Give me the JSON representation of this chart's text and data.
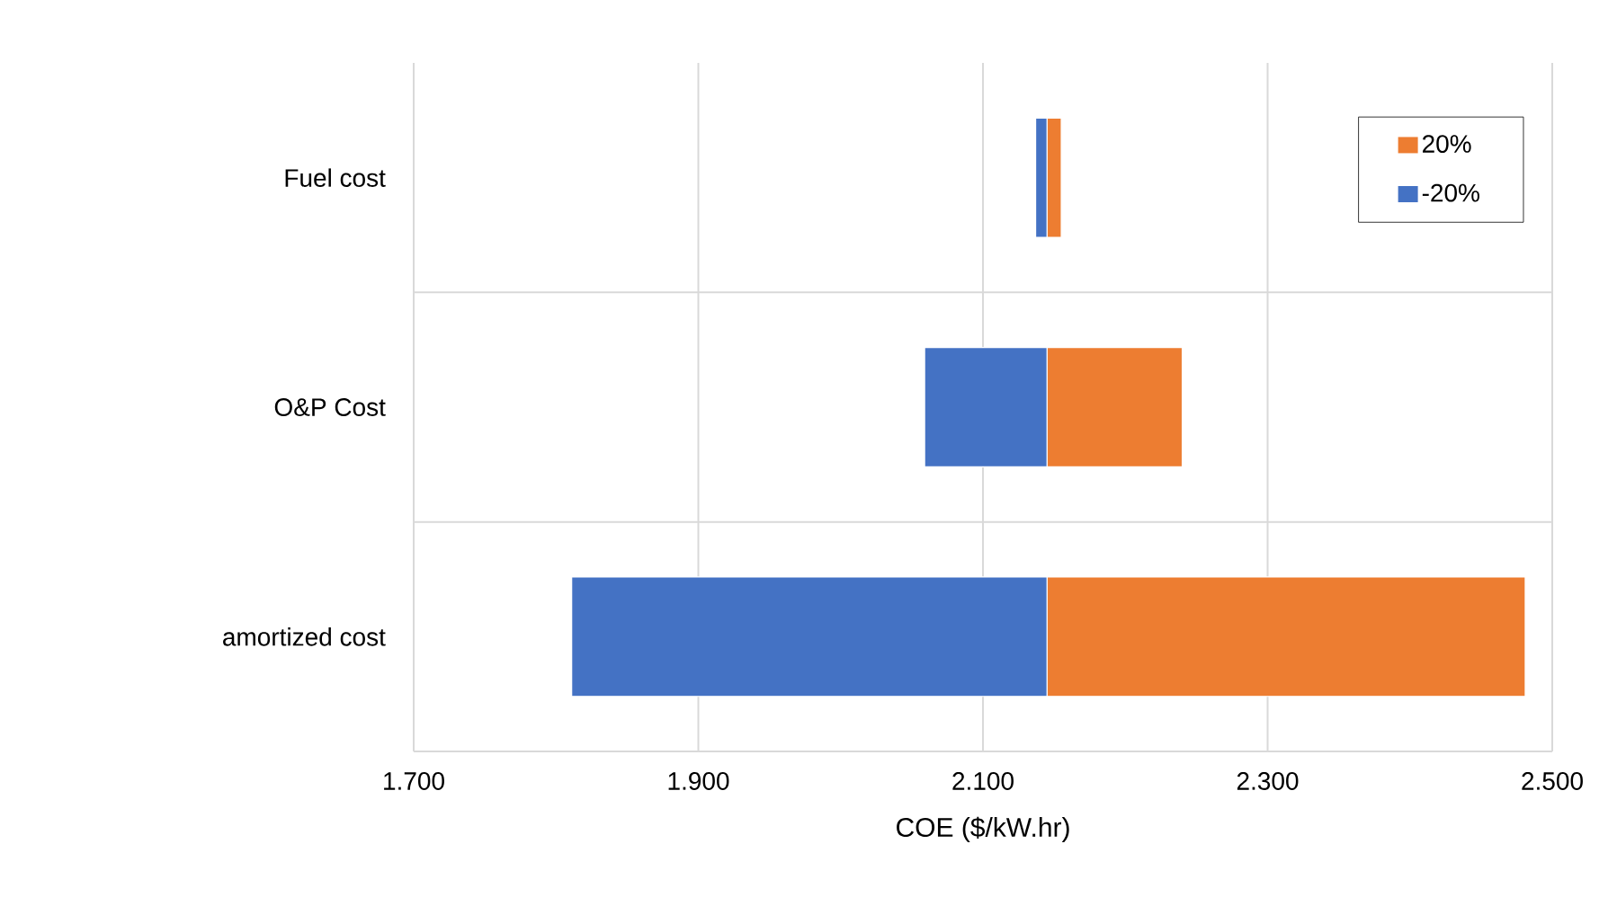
{
  "chart_data": {
    "type": "bar",
    "orientation": "horizontal",
    "xlabel": "COE ($/kW.hr)",
    "categories": [
      "Fuel cost",
      "O&P Cost",
      "amortized cost"
    ],
    "series": [
      {
        "name": "20%",
        "color": "#ed7d31",
        "base": [
          2.145,
          2.145,
          2.145
        ],
        "values": [
          0.01,
          0.095,
          0.336
        ]
      },
      {
        "name": "-20%",
        "color": "#4472c4",
        "base": [
          2.145,
          2.145,
          2.145
        ],
        "values": [
          -0.008,
          -0.086,
          -0.334
        ]
      }
    ],
    "xlim": [
      1.7,
      2.5
    ],
    "xticks": [
      {
        "value": 1.7,
        "label": "1.700"
      },
      {
        "value": 1.9,
        "label": "1.900"
      },
      {
        "value": 2.1,
        "label": "2.100"
      },
      {
        "value": 2.3,
        "label": "2.300"
      },
      {
        "value": 2.5,
        "label": "2.500"
      }
    ],
    "grid": true,
    "legend": "top right"
  }
}
